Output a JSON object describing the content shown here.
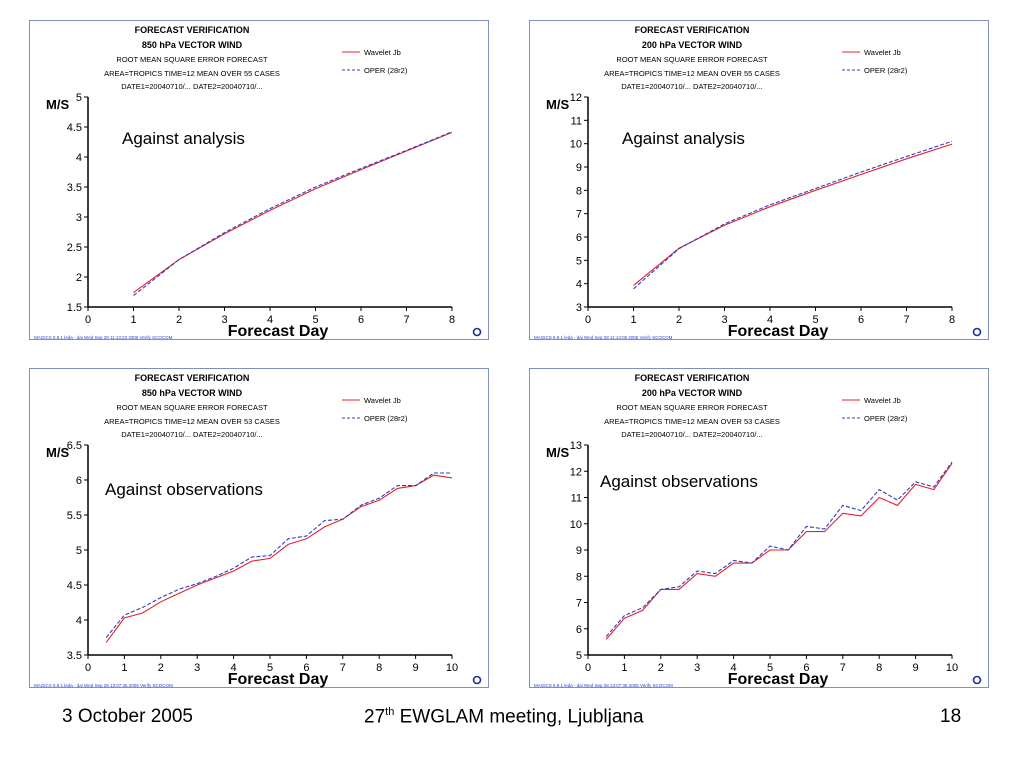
{
  "footer": {
    "date": "3 October 2005",
    "meeting_pre": "27",
    "meeting_sup": "th",
    "meeting_post": " EWGLAM meeting, Ljubljana",
    "page": "18"
  },
  "chart_data": [
    {
      "type": "line",
      "header": [
        "FORECAST VERIFICATION",
        "850 hPa VECTOR WIND",
        "ROOT MEAN SQUARE ERROR          FORECAST",
        "AREA=TROPICS    TIME=12   MEAN OVER  55 CASES",
        "DATE1=20040710/... DATE2=20040710/..."
      ],
      "annotation": "Against analysis",
      "xlabel": "Forecast Day",
      "ylabel": "M/S",
      "xlim": [
        0,
        8
      ],
      "ylim": [
        1.5,
        5
      ],
      "xticks": [
        "0",
        "1",
        "2",
        "3",
        "4",
        "5",
        "6",
        "7",
        "8"
      ],
      "yticks": [
        "1.5",
        "2",
        "2.5",
        "3",
        "3.5",
        "4",
        "4.5",
        "5"
      ],
      "footnote": "MAGICS 6.9.1 leda - dai Wed Sep 28 11:13:23 2005 Verify SCOCOM",
      "legend": [
        "Wavelet Jb",
        "OPER (28r2)"
      ],
      "series": [
        {
          "name": "Wavelet Jb",
          "x": [
            1,
            2,
            3,
            4,
            5,
            6,
            7,
            8
          ],
          "values": [
            1.74,
            2.29,
            2.72,
            3.11,
            3.47,
            3.79,
            4.1,
            4.41
          ]
        },
        {
          "name": "OPER (28r2)",
          "x": [
            1,
            2,
            3,
            4,
            5,
            6,
            7,
            8
          ],
          "values": [
            1.69,
            2.29,
            2.74,
            3.14,
            3.5,
            3.81,
            4.11,
            4.42
          ]
        }
      ]
    },
    {
      "type": "line",
      "header": [
        "FORECAST VERIFICATION",
        "200 hPa VECTOR WIND",
        "ROOT MEAN SQUARE ERROR          FORECAST",
        "AREA=TROPICS    TIME=12   MEAN OVER  55 CASES",
        "DATE1=20040710/... DATE2=20040710/..."
      ],
      "annotation": "Against analysis",
      "xlabel": "Forecast Day",
      "ylabel": "M/S",
      "xlim": [
        0,
        8
      ],
      "ylim": [
        3,
        12
      ],
      "xticks": [
        "0",
        "1",
        "2",
        "3",
        "4",
        "5",
        "6",
        "7",
        "8"
      ],
      "yticks": [
        "3",
        "4",
        "5",
        "6",
        "7",
        "8",
        "9",
        "10",
        "11",
        "12"
      ],
      "footnote": "MAGICS 6.9.1 leda - dai Wed Sep 28 11:14:05 2005 Verify SCOCOM",
      "legend": [
        "Wavelet Jb",
        "OPER (28r2)"
      ],
      "series": [
        {
          "name": "Wavelet Jb",
          "x": [
            1,
            2,
            3,
            4,
            5,
            6,
            7,
            8
          ],
          "values": [
            3.92,
            5.52,
            6.5,
            7.3,
            8.0,
            8.68,
            9.35,
            9.98
          ]
        },
        {
          "name": "OPER (28r2)",
          "x": [
            1,
            2,
            3,
            4,
            5,
            6,
            7,
            8
          ],
          "values": [
            3.78,
            5.5,
            6.56,
            7.38,
            8.08,
            8.78,
            9.45,
            10.1
          ]
        }
      ]
    },
    {
      "type": "line",
      "header": [
        "FORECAST VERIFICATION",
        "850 hPa VECTOR WIND",
        "ROOT MEAN SQUARE ERROR          FORECAST",
        "AREA=TROPICS    TIME=12   MEAN OVER  53 CASES",
        "DATE1=20040710/... DATE2=20040710/..."
      ],
      "annotation": "Against observations",
      "xlabel": "Forecast Day",
      "ylabel": "M/S",
      "xlim": [
        0,
        10
      ],
      "ylim": [
        3.5,
        6.5
      ],
      "xticks": [
        "0",
        "1",
        "2",
        "3",
        "4",
        "5",
        "6",
        "7",
        "8",
        "9",
        "10"
      ],
      "yticks": [
        "3.5",
        "4",
        "4.5",
        "5",
        "5.5",
        "6",
        "6.5"
      ],
      "footnote": "MAGICS 6.9.1 leda - dai Wed Sep 28 13:07:36 2005 Verify SCOCOM",
      "legend": [
        "Wavelet Jb",
        "OPER (28r2)"
      ],
      "series": [
        {
          "name": "Wavelet Jb",
          "x": [
            0.5,
            1,
            1.5,
            2,
            2.5,
            3,
            3.5,
            4,
            4.5,
            5,
            5.5,
            6,
            6.5,
            7,
            7.5,
            8,
            8.5,
            9,
            9.5,
            10
          ],
          "values": [
            3.68,
            4.03,
            4.1,
            4.26,
            4.38,
            4.5,
            4.6,
            4.7,
            4.84,
            4.88,
            5.08,
            5.16,
            5.33,
            5.44,
            5.62,
            5.71,
            5.88,
            5.92,
            6.07,
            6.03
          ]
        },
        {
          "name": "OPER (28r2)",
          "x": [
            0.5,
            1,
            1.5,
            2,
            2.5,
            3,
            3.5,
            4,
            4.5,
            5,
            5.5,
            6,
            6.5,
            7,
            7.5,
            8,
            8.5,
            9,
            9.5,
            10
          ],
          "values": [
            3.75,
            4.07,
            4.18,
            4.32,
            4.44,
            4.52,
            4.62,
            4.74,
            4.9,
            4.92,
            5.16,
            5.2,
            5.42,
            5.44,
            5.64,
            5.74,
            5.92,
            5.92,
            6.1,
            6.1
          ]
        }
      ]
    },
    {
      "type": "line",
      "header": [
        "FORECAST VERIFICATION",
        "200 hPa VECTOR WIND",
        "ROOT MEAN SQUARE ERROR          FORECAST",
        "AREA=TROPICS    TIME=12   MEAN OVER  53 CASES",
        "DATE1=20040710/... DATE2=20040710/..."
      ],
      "annotation": "Against observations",
      "xlabel": "Forecast Day",
      "ylabel": "M/S",
      "xlim": [
        0,
        10
      ],
      "ylim": [
        5,
        13
      ],
      "xticks": [
        "0",
        "1",
        "2",
        "3",
        "4",
        "5",
        "6",
        "7",
        "8",
        "9",
        "10"
      ],
      "yticks": [
        "5",
        "6",
        "7",
        "8",
        "9",
        "10",
        "11",
        "12",
        "13"
      ],
      "footnote": "MAGICS 6.9.1 leda - dai Wed Sep 28 13:07:36 2005 Verify SCOCOM",
      "legend": [
        "Wavelet Jb",
        "OPER (28r2)"
      ],
      "series": [
        {
          "name": "Wavelet Jb",
          "x": [
            0.5,
            1,
            1.5,
            2,
            2.5,
            3,
            3.5,
            4,
            4.5,
            5,
            5.5,
            6,
            6.5,
            7,
            7.5,
            8,
            8.5,
            9,
            9.5,
            10
          ],
          "values": [
            5.6,
            6.4,
            6.7,
            7.5,
            7.5,
            8.1,
            8.0,
            8.5,
            8.5,
            9.0,
            9.0,
            9.7,
            9.7,
            10.4,
            10.3,
            11.0,
            10.7,
            11.5,
            11.3,
            12.3
          ]
        },
        {
          "name": "OPER (28r2)",
          "x": [
            0.5,
            1,
            1.5,
            2,
            2.5,
            3,
            3.5,
            4,
            4.5,
            5,
            5.5,
            6,
            6.5,
            7,
            7.5,
            8,
            8.5,
            9,
            9.5,
            10
          ],
          "values": [
            5.7,
            6.5,
            6.8,
            7.5,
            7.6,
            8.2,
            8.1,
            8.6,
            8.5,
            9.15,
            9.0,
            9.9,
            9.8,
            10.7,
            10.5,
            11.3,
            10.9,
            11.6,
            11.4,
            12.35
          ]
        }
      ]
    }
  ],
  "colors": {
    "wavelet": "#e8202a",
    "oper": "#2b3fc4",
    "border": "#7f8fbf",
    "logo": "#1a2fa0"
  }
}
